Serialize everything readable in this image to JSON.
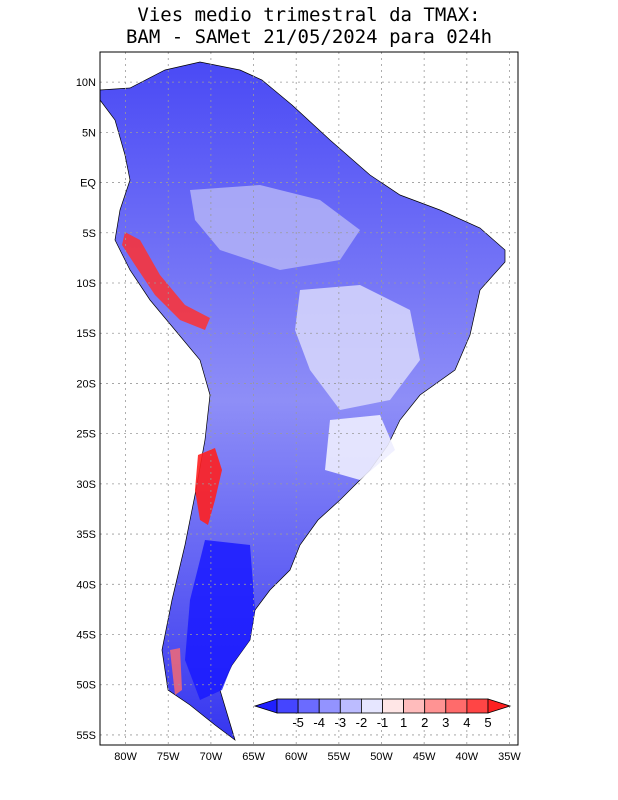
{
  "title": {
    "line1": "Vies medio trimestral da TMAX:",
    "line2": "BAM - SAMet 21/05/2024  para 024h"
  },
  "map": {
    "lon_range": [
      -83,
      -34
    ],
    "lat_range": [
      -56,
      13
    ],
    "lat_ticks": [
      "10N",
      "5N",
      "EQ",
      "5S",
      "10S",
      "15S",
      "20S",
      "25S",
      "30S",
      "35S",
      "40S",
      "45S",
      "50S",
      "55S"
    ],
    "lon_ticks": [
      "80W",
      "75W",
      "70W",
      "65W",
      "60W",
      "55W",
      "50W",
      "45W",
      "40W",
      "35W"
    ],
    "grid": true
  },
  "colorbar": {
    "labels": [
      "-5",
      "-4",
      "-3",
      "-2",
      "-1",
      "1",
      "2",
      "3",
      "4",
      "5"
    ],
    "colors": [
      "#2020ff",
      "#4545ff",
      "#6b6bff",
      "#9393ff",
      "#bcbcff",
      "#e6e6ff",
      "#ffe6e6",
      "#ffbcbc",
      "#ff9393",
      "#ff6b6b",
      "#ff4545",
      "#ff2020"
    ]
  }
}
